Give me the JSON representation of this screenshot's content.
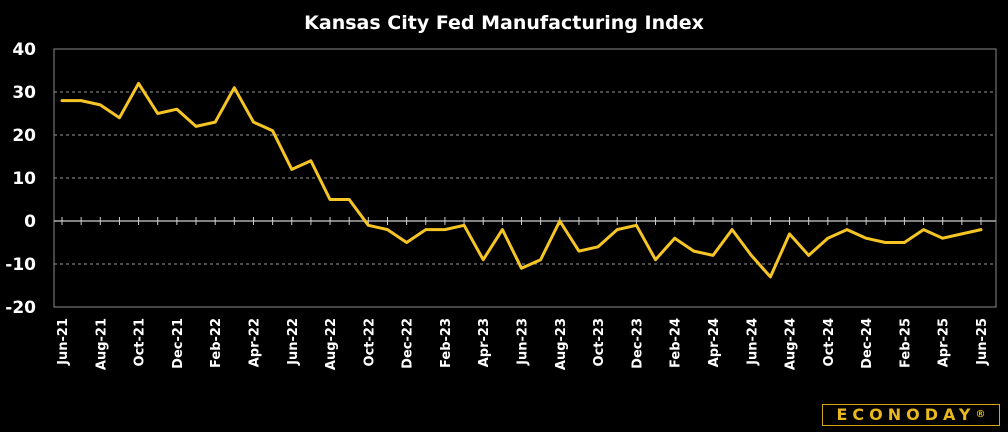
{
  "chart_data": {
    "type": "line",
    "title": "Kansas City Fed Manufacturing Index",
    "xlabel": "",
    "ylabel": "",
    "ylim": [
      -20,
      40
    ],
    "yticks": [
      40,
      30,
      20,
      10,
      0,
      -10,
      -20
    ],
    "grid": true,
    "line_color": "#f5c425",
    "x": [
      "Jun-21",
      "Jul-21",
      "Aug-21",
      "Sep-21",
      "Oct-21",
      "Nov-21",
      "Dec-21",
      "Jan-22",
      "Feb-22",
      "Mar-22",
      "Apr-22",
      "May-22",
      "Jun-22",
      "Jul-22",
      "Aug-22",
      "Sep-22",
      "Oct-22",
      "Nov-22",
      "Dec-22",
      "Jan-23",
      "Feb-23",
      "Mar-23",
      "Apr-23",
      "May-23",
      "Jun-23",
      "Jul-23",
      "Aug-23",
      "Sep-23",
      "Oct-23",
      "Nov-23",
      "Dec-23",
      "Jan-24",
      "Feb-24",
      "Mar-24",
      "Apr-24",
      "May-24",
      "Jun-24",
      "Jul-24",
      "Aug-24",
      "Sep-24",
      "Oct-24",
      "Nov-24",
      "Dec-24",
      "Jan-25",
      "Feb-25",
      "Mar-25",
      "Apr-25",
      "May-25",
      "Jun-25"
    ],
    "tick_labels": [
      "Jun-21",
      "Aug-21",
      "Oct-21",
      "Dec-21",
      "Feb-22",
      "Apr-22",
      "Jun-22",
      "Aug-22",
      "Oct-22",
      "Dec-22",
      "Feb-23",
      "Apr-23",
      "Jun-23",
      "Aug-23",
      "Oct-23",
      "Dec-23",
      "Feb-24",
      "Apr-24",
      "Jun-24",
      "Aug-24",
      "Oct-24",
      "Dec-24",
      "Feb-25",
      "Apr-25",
      "Jun-25"
    ],
    "series": [
      {
        "values": [
          28,
          28,
          27,
          24,
          32,
          25,
          26,
          22,
          23,
          31,
          23,
          21,
          12,
          14,
          5,
          5,
          -1,
          -2,
          -5,
          -2,
          -2,
          -1,
          -9,
          -2,
          -11,
          -9,
          0,
          -7,
          -6,
          -2,
          -1,
          -9,
          -4,
          -7,
          -8,
          -2,
          -8,
          -13,
          -3,
          -8,
          -4,
          -2,
          -4,
          -5,
          -5,
          -2,
          -4,
          -3,
          -2
        ]
      }
    ]
  },
  "logo": {
    "text": "ECONODAY",
    "mark": "®"
  }
}
